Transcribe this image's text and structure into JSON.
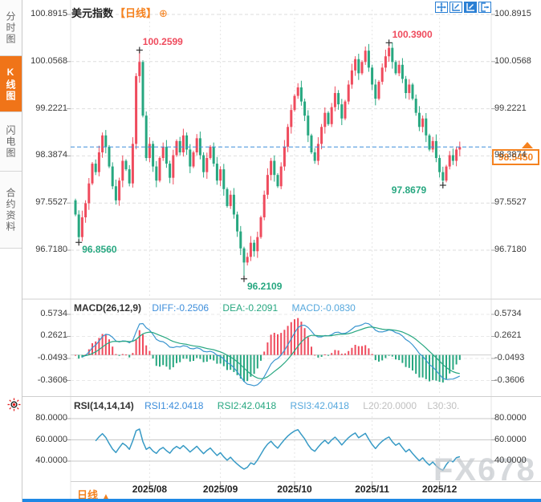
{
  "window": {
    "watermark": "FX678"
  },
  "sidebar": {
    "tabs": [
      {
        "label": "分时图",
        "active": false
      },
      {
        "label": "K线图",
        "active": true
      },
      {
        "label": "闪电图",
        "active": false
      },
      {
        "label": "合约资料",
        "active": false
      }
    ]
  },
  "header": {
    "symbol": "美元指数",
    "period_tag": "【日线】",
    "add_icon": "⊕"
  },
  "toolbar": {
    "icons": [
      "crosshair-move",
      "axis-zoom-out",
      "axis-zoom-in",
      "export"
    ]
  },
  "price_box": {
    "value": "98.5450"
  },
  "bottom_bar": {
    "period_label": "日线",
    "arrow": "▲"
  },
  "macd_header": {
    "title": "MACD(26,12,9)",
    "diff": "DIFF:-0.2506",
    "dea": "DEA:-0.2091",
    "macd": "MACD:-0.0830"
  },
  "rsi_header": {
    "title": "RSI(14,14,14)",
    "rsi1": "RSI1:42.0418",
    "rsi2": "RSI2:42.0418",
    "rsi3": "RSI3:42.0418",
    "l20": "L20:20.0000",
    "l30": "L30:30."
  },
  "colors": {
    "up": "#ef4b5d",
    "down": "#27a780",
    "accent_orange": "#f5821f",
    "blue_line": "#3a95cf",
    "teal_line": "#27a780",
    "light_blue_line": "#8fd0e8",
    "grid": "#dedede",
    "separator": "#cfcfcf",
    "axis_text": "#3a3a3a",
    "current_price_line": "#3d8edb"
  },
  "chart_data": {
    "type": "candlestick",
    "title": "美元指数 日线 (US Dollar Index, daily)",
    "price_axis_labels": [
      "100.8915",
      "100.0568",
      "99.2221",
      "98.3874",
      "97.5527",
      "96.7180"
    ],
    "price_axis_values": [
      100.8915,
      100.0568,
      99.2221,
      98.3874,
      97.5527,
      96.718
    ],
    "ylim": [
      96.718,
      100.8915
    ],
    "current_price": 98.545,
    "x_tick_labels": [
      "2025/08",
      "2025/09",
      "2025/10",
      "2025/11",
      "2025/12"
    ],
    "x_tick_indices": [
      22,
      43,
      65,
      88,
      108
    ],
    "first_open": 97.6,
    "close": [
      97.35,
      96.95,
      97.3,
      97.55,
      97.9,
      98.25,
      98.1,
      98.45,
      98.75,
      98.55,
      98.2,
      97.85,
      97.6,
      97.95,
      98.3,
      98.15,
      97.9,
      98.6,
      99.8,
      100.05,
      99.1,
      98.35,
      98.6,
      98.2,
      97.95,
      98.35,
      98.55,
      98.25,
      98.0,
      98.4,
      98.65,
      98.45,
      98.75,
      98.5,
      98.2,
      98.45,
      98.7,
      98.4,
      98.1,
      98.35,
      98.55,
      98.25,
      97.95,
      98.15,
      97.8,
      97.5,
      97.7,
      97.35,
      97.05,
      96.75,
      96.5,
      96.6,
      96.85,
      96.7,
      96.95,
      97.3,
      97.7,
      98.05,
      98.3,
      98.05,
      97.85,
      98.2,
      98.55,
      98.9,
      99.2,
      99.45,
      99.6,
      99.35,
      99.1,
      98.75,
      98.45,
      98.3,
      98.6,
      98.9,
      99.15,
      98.95,
      99.25,
      99.5,
      99.3,
      99.05,
      99.35,
      99.65,
      99.9,
      100.1,
      99.85,
      100.05,
      100.25,
      99.95,
      99.65,
      99.4,
      99.7,
      99.95,
      100.15,
      100.3,
      100.05,
      99.85,
      100.0,
      99.75,
      99.5,
      99.65,
      99.4,
      99.15,
      98.9,
      99.05,
      98.75,
      98.5,
      98.65,
      98.35,
      98.1,
      97.95,
      98.2,
      98.4,
      98.3,
      98.5,
      98.545
    ],
    "wick_overrides": {
      "1": {
        "low": 96.856
      },
      "19": {
        "high": 100.2599
      },
      "50": {
        "low": 96.2109
      },
      "93": {
        "high": 100.39
      },
      "109": {
        "low": 97.8679
      }
    },
    "annotations": [
      {
        "label": "96.8560",
        "price": 96.856,
        "candle": 1,
        "color": "#27a780",
        "side": "below-right"
      },
      {
        "label": "100.2599",
        "price": 100.2599,
        "candle": 19,
        "color": "#ef4b5d",
        "side": "above-right"
      },
      {
        "label": "96.2109",
        "price": 96.2109,
        "candle": 50,
        "color": "#27a780",
        "side": "below-right"
      },
      {
        "label": "100.3900",
        "price": 100.39,
        "candle": 93,
        "color": "#ef4b5d",
        "side": "above-right"
      },
      {
        "label": "97.8679",
        "price": 97.8679,
        "candle": 109,
        "color": "#27a780",
        "side": "below-left"
      }
    ],
    "macd": {
      "type": "macd",
      "params": [
        26,
        12,
        9
      ],
      "axis_labels": [
        "0.5734",
        "0.2621",
        "-0.0493",
        "-0.3606"
      ],
      "axis_values": [
        0.5734,
        0.2621,
        -0.0493,
        -0.3606
      ],
      "last": {
        "diff": -0.2506,
        "dea": -0.2091,
        "macd": -0.083
      }
    },
    "rsi": {
      "type": "rsi",
      "params": [
        14,
        14,
        14
      ],
      "axis_labels": [
        "80.0000",
        "60.0000",
        "40.0000"
      ],
      "axis_values": [
        80,
        60,
        40
      ],
      "guides": [
        80,
        60,
        40
      ],
      "last": {
        "rsi1": 42.0418,
        "rsi2": 42.0418,
        "rsi3": 42.0418
      }
    }
  }
}
